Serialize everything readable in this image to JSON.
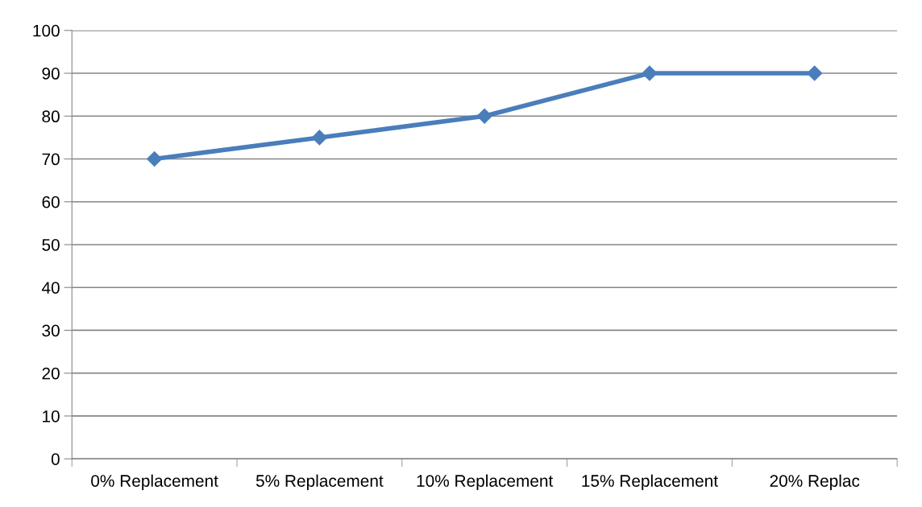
{
  "chart_data": {
    "type": "line",
    "categories": [
      "0% Replacement",
      "5% Replacement",
      "10% Replacement",
      "15% Replacement",
      "20% Replac"
    ],
    "series": [
      {
        "color": "#4a7ebb",
        "values": [
          70,
          75,
          80,
          90,
          90
        ]
      }
    ],
    "ylim": [
      0,
      100
    ],
    "yticks": [
      0,
      10,
      20,
      30,
      40,
      50,
      60,
      70,
      80,
      90,
      100
    ],
    "grid": "y",
    "marker": "diamond",
    "line_style": "solid"
  }
}
